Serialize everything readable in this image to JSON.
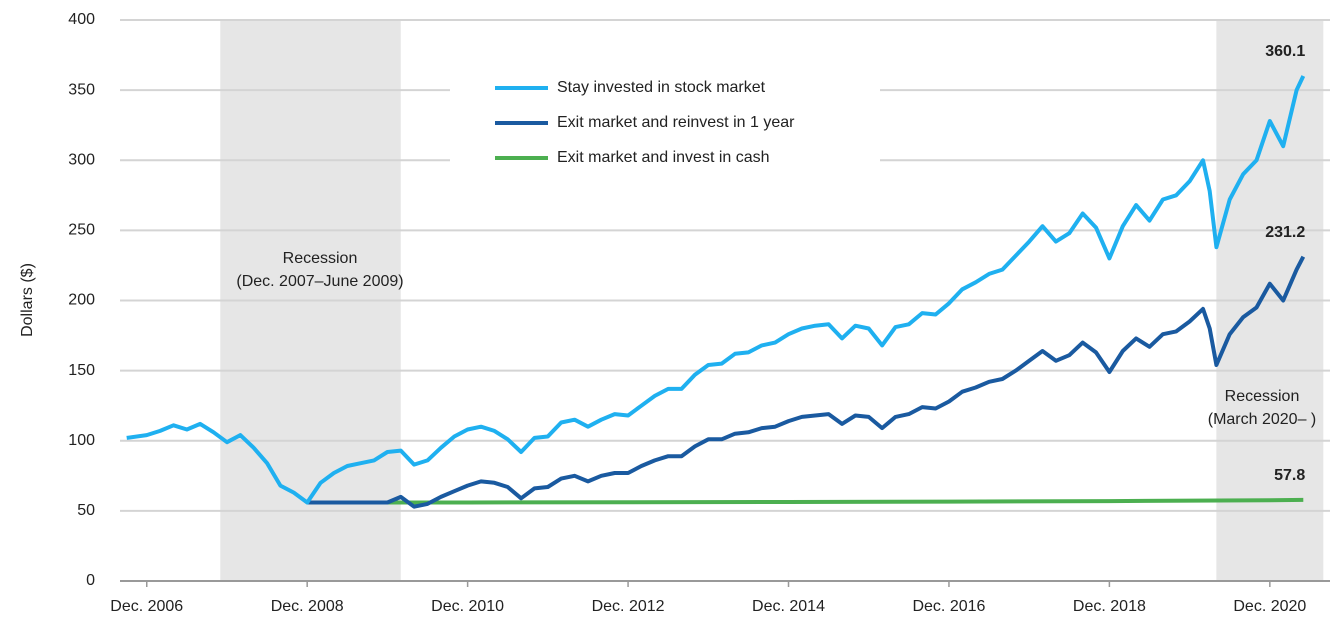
{
  "chart_data": {
    "type": "line",
    "y_label": "Dollars ($)",
    "xlim": [
      "2006-08",
      "2021-09"
    ],
    "ylim": [
      0,
      400
    ],
    "yticks": [
      0,
      50,
      100,
      150,
      200,
      250,
      300,
      350,
      400
    ],
    "xticks": [
      {
        "value": "2006-12",
        "label": "Dec. 2006"
      },
      {
        "value": "2008-12",
        "label": "Dec. 2008"
      },
      {
        "value": "2010-12",
        "label": "Dec. 2010"
      },
      {
        "value": "2012-12",
        "label": "Dec. 2012"
      },
      {
        "value": "2014-12",
        "label": "Dec. 2014"
      },
      {
        "value": "2016-12",
        "label": "Dec. 2016"
      },
      {
        "value": "2018-12",
        "label": "Dec. 2018"
      },
      {
        "value": "2020-12",
        "label": "Dec. 2020"
      }
    ],
    "grid": true,
    "recessions": [
      {
        "start": "2007-11",
        "end": "2010-02",
        "label": [
          "Recession",
          "(Dec. 2007–June 2009)"
        ]
      },
      {
        "start": "2020-04",
        "end": "2021-08",
        "label": [
          "Recession",
          "(March 2020– )"
        ]
      }
    ],
    "series": [
      {
        "name": "Stay invested in stock market",
        "color": "#1fb0f0",
        "x": [
          "2006-09",
          "2006-12",
          "2007-02",
          "2007-04",
          "2007-06",
          "2007-08",
          "2007-10",
          "2007-12",
          "2008-02",
          "2008-04",
          "2008-06",
          "2008-08",
          "2008-10",
          "2008-12",
          "2009-02",
          "2009-04",
          "2009-06",
          "2009-08",
          "2009-10",
          "2009-12",
          "2010-02",
          "2010-04",
          "2010-06",
          "2010-08",
          "2010-10",
          "2010-12",
          "2011-02",
          "2011-04",
          "2011-06",
          "2011-08",
          "2011-10",
          "2011-12",
          "2012-02",
          "2012-04",
          "2012-06",
          "2012-08",
          "2012-10",
          "2012-12",
          "2013-02",
          "2013-04",
          "2013-06",
          "2013-08",
          "2013-10",
          "2013-12",
          "2014-02",
          "2014-04",
          "2014-06",
          "2014-08",
          "2014-10",
          "2014-12",
          "2015-02",
          "2015-04",
          "2015-06",
          "2015-08",
          "2015-10",
          "2015-12",
          "2016-02",
          "2016-04",
          "2016-06",
          "2016-08",
          "2016-10",
          "2016-12",
          "2017-02",
          "2017-04",
          "2017-06",
          "2017-08",
          "2017-10",
          "2017-12",
          "2018-02",
          "2018-04",
          "2018-06",
          "2018-08",
          "2018-10",
          "2018-12",
          "2019-02",
          "2019-04",
          "2019-06",
          "2019-08",
          "2019-10",
          "2019-12",
          "2020-02",
          "2020-03",
          "2020-04",
          "2020-06",
          "2020-08",
          "2020-10",
          "2020-12",
          "2021-02",
          "2021-04",
          "2021-05"
        ],
        "values": [
          102,
          104,
          107,
          111,
          108,
          112,
          106,
          99,
          104,
          95,
          84,
          68,
          63,
          56,
          70,
          77,
          82,
          84,
          86,
          92,
          93,
          83,
          86,
          95,
          103,
          108,
          110,
          107,
          101,
          92,
          102,
          103,
          113,
          115,
          110,
          115,
          119,
          118,
          125,
          132,
          137,
          137,
          147,
          154,
          155,
          162,
          163,
          168,
          170,
          176,
          180,
          182,
          183,
          173,
          182,
          180,
          168,
          181,
          183,
          191,
          190,
          198,
          208,
          213,
          219,
          222,
          232,
          242,
          253,
          242,
          248,
          262,
          252,
          230,
          253,
          268,
          257,
          272,
          275,
          285,
          300,
          278,
          238,
          272,
          290,
          300,
          328,
          310,
          350,
          360.1
        ]
      },
      {
        "name": "Exit market and reinvest in 1 year",
        "color": "#1a5aa0",
        "x": [
          "2008-12",
          "2009-12",
          "2010-02",
          "2010-04",
          "2010-06",
          "2010-08",
          "2010-10",
          "2010-12",
          "2011-02",
          "2011-04",
          "2011-06",
          "2011-08",
          "2011-10",
          "2011-12",
          "2012-02",
          "2012-04",
          "2012-06",
          "2012-08",
          "2012-10",
          "2012-12",
          "2013-02",
          "2013-04",
          "2013-06",
          "2013-08",
          "2013-10",
          "2013-12",
          "2014-02",
          "2014-04",
          "2014-06",
          "2014-08",
          "2014-10",
          "2014-12",
          "2015-02",
          "2015-04",
          "2015-06",
          "2015-08",
          "2015-10",
          "2015-12",
          "2016-02",
          "2016-04",
          "2016-06",
          "2016-08",
          "2016-10",
          "2016-12",
          "2017-02",
          "2017-04",
          "2017-06",
          "2017-08",
          "2017-10",
          "2017-12",
          "2018-02",
          "2018-04",
          "2018-06",
          "2018-08",
          "2018-10",
          "2018-12",
          "2019-02",
          "2019-04",
          "2019-06",
          "2019-08",
          "2019-10",
          "2019-12",
          "2020-02",
          "2020-03",
          "2020-04",
          "2020-06",
          "2020-08",
          "2020-10",
          "2020-12",
          "2021-02",
          "2021-04",
          "2021-05"
        ],
        "values": [
          56,
          56,
          60,
          53,
          55,
          60,
          64,
          68,
          71,
          70,
          67,
          59,
          66,
          67,
          73,
          75,
          71,
          75,
          77,
          77,
          82,
          86,
          89,
          89,
          96,
          101,
          101,
          105,
          106,
          109,
          110,
          114,
          117,
          118,
          119,
          112,
          118,
          117,
          109,
          117,
          119,
          124,
          123,
          128,
          135,
          138,
          142,
          144,
          150,
          157,
          164,
          157,
          161,
          170,
          163,
          149,
          164,
          173,
          167,
          176,
          178,
          185,
          194,
          180,
          154,
          176,
          188,
          195,
          212,
          200,
          222,
          231.2
        ]
      },
      {
        "name": "Exit market and invest in cash",
        "color": "#4caf50",
        "x": [
          "2008-12",
          "2010-12",
          "2014-12",
          "2016-12",
          "2018-12",
          "2020-12",
          "2021-05"
        ],
        "values": [
          56,
          56,
          56.3,
          56.6,
          57,
          57.6,
          57.8
        ]
      }
    ]
  }
}
